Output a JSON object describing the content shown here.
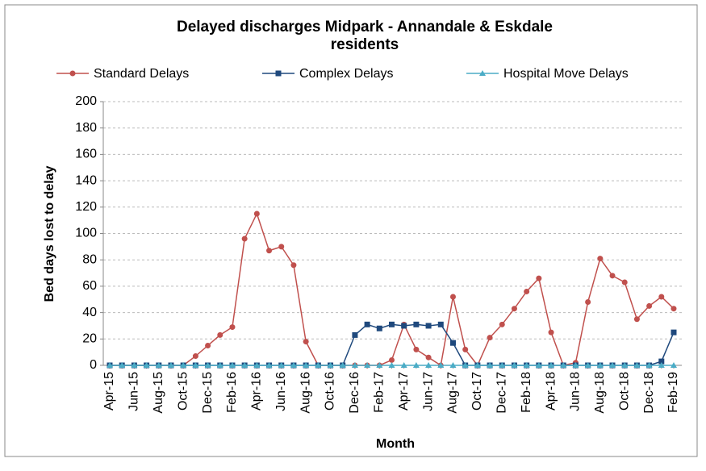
{
  "chart_data": {
    "type": "line",
    "title": "Delayed discharges Midpark - Annandale & Eskdale residents",
    "x_label": "Month",
    "y_label": "Bed days lost to delay",
    "categories": [
      "Apr-15",
      null,
      "Jun-15",
      null,
      "Aug-15",
      null,
      "Oct-15",
      null,
      "Dec-15",
      null,
      "Feb-16",
      null,
      "Apr-16",
      null,
      "Jun-16",
      null,
      "Aug-16",
      null,
      "Oct-16",
      null,
      "Dec-16",
      null,
      "Feb-17",
      null,
      "Apr-17",
      null,
      "Jun-17",
      null,
      "Aug-17",
      null,
      "Oct-17",
      null,
      "Dec-17",
      null,
      "Feb-18",
      null,
      "Apr-18",
      null,
      "Jun-18",
      null,
      "Aug-18",
      null,
      "Oct-18",
      null,
      "Dec-18",
      null,
      "Feb-19"
    ],
    "series": [
      {
        "name": "Standard Delays",
        "color": "#c0504d",
        "marker": "circle",
        "values": [
          0,
          0,
          0,
          0,
          0,
          0,
          0,
          7,
          15,
          23,
          29,
          96,
          115,
          87,
          90,
          76,
          18,
          0,
          0,
          0,
          0,
          0,
          0,
          4,
          31,
          12,
          6,
          0,
          52,
          12,
          0,
          21,
          31,
          43,
          56,
          66,
          25,
          0,
          2,
          48,
          81,
          68,
          63,
          35,
          45,
          52,
          43
        ]
      },
      {
        "name": "Complex Delays",
        "color": "#1f497d",
        "marker": "square",
        "values": [
          0,
          0,
          0,
          0,
          0,
          0,
          0,
          0,
          0,
          0,
          0,
          0,
          0,
          0,
          0,
          0,
          0,
          0,
          0,
          0,
          23,
          31,
          28,
          31,
          30,
          31,
          30,
          31,
          17,
          0,
          0,
          0,
          0,
          0,
          0,
          0,
          0,
          0,
          0,
          0,
          0,
          0,
          0,
          0,
          0,
          3,
          25
        ]
      },
      {
        "name": "Hospital Move Delays",
        "color": "#4bacc6",
        "marker": "triangle",
        "values": [
          0,
          0,
          0,
          0,
          0,
          0,
          0,
          0,
          0,
          0,
          0,
          0,
          0,
          0,
          0,
          0,
          0,
          0,
          0,
          0,
          0,
          0,
          0,
          0,
          0,
          0,
          0,
          0,
          0,
          0,
          0,
          0,
          0,
          0,
          0,
          0,
          0,
          0,
          0,
          0,
          0,
          0,
          0,
          0,
          0,
          0,
          0
        ]
      }
    ],
    "ylim": [
      0,
      200
    ],
    "yticks": [
      0,
      20,
      40,
      60,
      80,
      100,
      120,
      140,
      160,
      180,
      200
    ],
    "grid": true,
    "legend": "top"
  }
}
